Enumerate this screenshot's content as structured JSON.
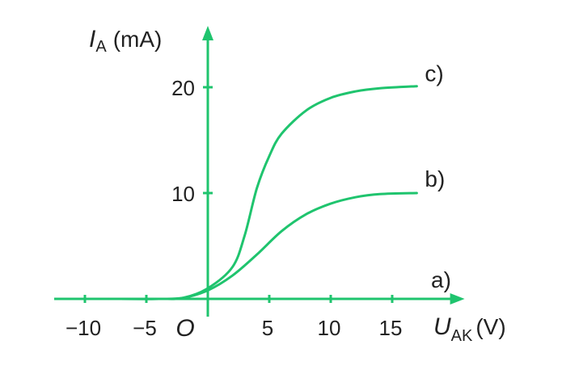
{
  "chart_data": {
    "type": "line",
    "colors": {
      "curve": "#1fc46e",
      "axis": "#1fc46e",
      "text": "#222222"
    },
    "x_axis": {
      "symbol": "U",
      "subscript": "AK",
      "unit": "(V)",
      "range": [
        -12.5,
        20.5
      ],
      "ticks": [
        -10,
        -5,
        5,
        10,
        15
      ],
      "tick_labels": [
        "−10",
        "−5",
        "5",
        "10",
        "15"
      ]
    },
    "y_axis": {
      "symbol": "I",
      "subscript": "A",
      "unit": "(mA)",
      "range": [
        0,
        25
      ],
      "ticks": [
        10,
        20
      ],
      "tick_labels": [
        "10",
        "20"
      ]
    },
    "origin_label": "O",
    "grid": false,
    "series": [
      {
        "name": "a)",
        "points": [
          [
            -8,
            0
          ],
          [
            17.5,
            0
          ]
        ]
      },
      {
        "name": "b)",
        "points": [
          [
            -8,
            0
          ],
          [
            -4,
            0
          ],
          [
            -2,
            0.1
          ],
          [
            0,
            0.8
          ],
          [
            2,
            2.2
          ],
          [
            4,
            4.2
          ],
          [
            6,
            6.4
          ],
          [
            8,
            8.0
          ],
          [
            10,
            9.0
          ],
          [
            12,
            9.6
          ],
          [
            14,
            9.9
          ],
          [
            17,
            10.0
          ]
        ]
      },
      {
        "name": "c)",
        "points": [
          [
            -8,
            0
          ],
          [
            -4,
            0
          ],
          [
            -2,
            0.1
          ],
          [
            0,
            1.0
          ],
          [
            2,
            3.0
          ],
          [
            3,
            6.0
          ],
          [
            4,
            10.5
          ],
          [
            5,
            13.5
          ],
          [
            6,
            15.6
          ],
          [
            8,
            17.8
          ],
          [
            10,
            19.0
          ],
          [
            12,
            19.6
          ],
          [
            14,
            19.9
          ],
          [
            17,
            20.1
          ]
        ]
      }
    ]
  }
}
